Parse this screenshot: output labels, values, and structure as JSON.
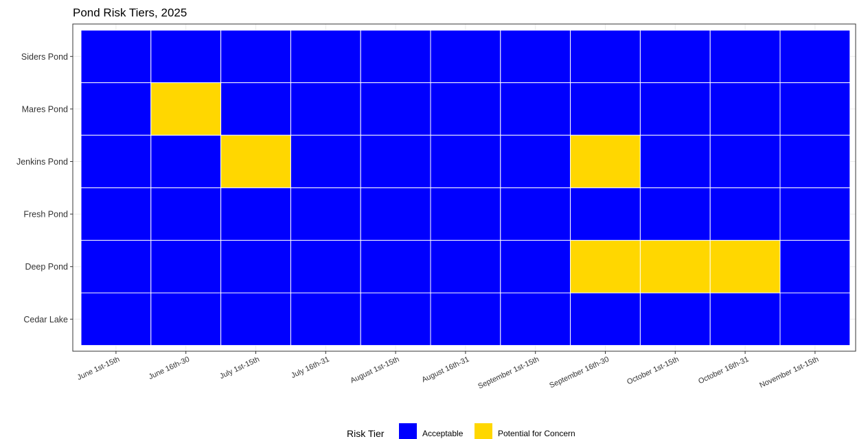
{
  "chart_data": {
    "type": "heatmap",
    "title": "Pond Risk Tiers, 2025",
    "xlabel": "",
    "ylabel": "",
    "x_categories": [
      "June 1st-15th",
      "June 16th-30",
      "July 1st-15th",
      "July 16th-31",
      "August 1st-15th",
      "August 16th-31",
      "September 1st-15th",
      "September 16th-30",
      "October 1st-15th",
      "October 16th-31",
      "November 1st-15th"
    ],
    "y_categories": [
      "Siders Pond",
      "Mares Pond",
      "Jenkins Pond",
      "Fresh Pond",
      "Deep Pond",
      "Cedar Lake"
    ],
    "tiers": [
      {
        "label": "Acceptable",
        "color": "#0000FF"
      },
      {
        "label": "Potential for Concern",
        "color": "#FFD700"
      }
    ],
    "cells": [
      [
        0,
        0,
        0,
        0,
        0,
        0,
        0,
        0,
        0,
        0,
        0
      ],
      [
        0,
        1,
        0,
        0,
        0,
        0,
        0,
        0,
        0,
        0,
        0
      ],
      [
        0,
        0,
        1,
        0,
        0,
        0,
        0,
        1,
        0,
        0,
        0
      ],
      [
        0,
        0,
        0,
        0,
        0,
        0,
        0,
        0,
        0,
        0,
        0
      ],
      [
        0,
        0,
        0,
        0,
        0,
        0,
        0,
        1,
        1,
        1,
        0
      ],
      [
        0,
        0,
        0,
        0,
        0,
        0,
        0,
        0,
        0,
        0,
        0
      ]
    ],
    "legend": {
      "title": "Risk Tier",
      "position": "bottom"
    },
    "grid": true
  }
}
